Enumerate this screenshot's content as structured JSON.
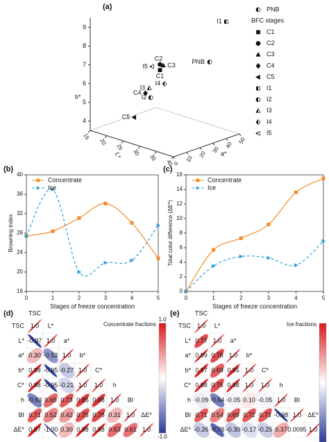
{
  "chart_data": [
    {
      "type": "scatter3d",
      "panel": "(a)",
      "xlabel": "L*",
      "ylabel": "a*",
      "zlabel": "b*",
      "xlim": [
        15,
        40
      ],
      "xticks": [
        15,
        20,
        25,
        30,
        35,
        40
      ],
      "ylim": [
        0,
        50
      ],
      "yticks": [
        0,
        10,
        20,
        30,
        40,
        50
      ],
      "zlim": [
        3.5,
        9.5
      ],
      "zticks": [
        4,
        5,
        6,
        7,
        8,
        9
      ],
      "legend_title": "BFC stages",
      "color": "#111111",
      "points": [
        {
          "name": "PNB",
          "marker": "circle",
          "half": true,
          "x": 35,
          "y": 40,
          "z": 7.3
        },
        {
          "name": "C1",
          "marker": "square",
          "half": false,
          "x": 30,
          "y": 15,
          "z": 7.2
        },
        {
          "name": "C2",
          "marker": "circle",
          "half": false,
          "x": 30,
          "y": 15,
          "z": 7.5
        },
        {
          "name": "C3",
          "marker": "triangle",
          "half": false,
          "x": 31,
          "y": 15,
          "z": 7.5
        },
        {
          "name": "C4",
          "marker": "diamond",
          "half": false,
          "x": 28,
          "y": 9,
          "z": 6
        },
        {
          "name": "C5",
          "marker": "triangle-left",
          "half": false,
          "x": 27,
          "y": 3,
          "z": 4.8
        },
        {
          "name": "I1",
          "marker": "square",
          "half": true,
          "x": 38,
          "y": 45,
          "z": 9.5
        },
        {
          "name": "I2",
          "marker": "circle",
          "half": true,
          "x": 30,
          "y": 8,
          "z": 5.9
        },
        {
          "name": "I3",
          "marker": "triangle",
          "half": true,
          "x": 28,
          "y": 12,
          "z": 6.2
        },
        {
          "name": "I4",
          "marker": "diamond",
          "half": true,
          "x": 31,
          "y": 16,
          "z": 6.5
        },
        {
          "name": "I5",
          "marker": "triangle-left",
          "half": true,
          "x": 28,
          "y": 14,
          "z": 7.3
        }
      ]
    },
    {
      "type": "line",
      "panel": "(b)",
      "xlabel": "Stages of freeze concentration",
      "ylabel": "Browning index",
      "x": [
        0,
        1,
        2,
        3,
        4,
        5
      ],
      "xlim": [
        0,
        5
      ],
      "xticks": [
        0,
        1,
        2,
        3,
        4,
        5
      ],
      "ylim": [
        16,
        40
      ],
      "yticks": [
        16,
        20,
        24,
        28,
        32,
        36,
        40
      ],
      "legend": "upper left",
      "smooth": true,
      "series": [
        {
          "name": "Concentrate",
          "color": "#f28c28",
          "dash": false,
          "marker": "square",
          "values": [
            27.4,
            28.4,
            31.1,
            34.1,
            30.1,
            22.8
          ]
        },
        {
          "name": "Ice",
          "color": "#2e9fd8",
          "dash": true,
          "marker": "triangle-right",
          "values": [
            27.4,
            37,
            20,
            21.9,
            22.4,
            29.6
          ]
        }
      ]
    },
    {
      "type": "line",
      "panel": "(c)",
      "xlabel": "Stages of freeze concentration",
      "ylabel": "Total color difference (ΔE*)",
      "x": [
        0,
        1,
        2,
        3,
        4,
        5
      ],
      "xlim": [
        0,
        5
      ],
      "xticks": [
        0,
        1,
        2,
        3,
        4,
        5
      ],
      "ylim": [
        0,
        16
      ],
      "yticks": [
        0,
        2,
        4,
        6,
        8,
        10,
        12,
        14,
        16
      ],
      "legend": "upper left",
      "smooth": true,
      "series": [
        {
          "name": "Concentrate",
          "color": "#f28c28",
          "dash": false,
          "marker": "square",
          "values": [
            0,
            5.7,
            7.3,
            9.2,
            13.6,
            15.5
          ]
        },
        {
          "name": "Ice",
          "color": "#2e9fd8",
          "dash": true,
          "marker": "triangle-right",
          "values": [
            0,
            3.5,
            4.8,
            4.6,
            3.6,
            6.9
          ]
        }
      ]
    },
    {
      "type": "correlation",
      "panel": "(d)",
      "colorbar_title": "Concentrate fractions",
      "colorbar_ticks": [
        {
          "value": 1,
          "label": "1.0"
        },
        {
          "value": -1,
          "label": "-1.0"
        }
      ],
      "colormap": {
        "low": "#2b3a9a",
        "mid": "#ffffff",
        "high": "#d7191c"
      },
      "variables": [
        "TSC",
        "L*",
        "a*",
        "b*",
        "C*",
        "h",
        "BI",
        "ΔE*"
      ],
      "values": [
        [
          1
        ],
        [
          -0.97,
          1
        ],
        [
          0.3,
          -0.53,
          1
        ],
        [
          0.98,
          -0.95,
          -0.27,
          1
        ],
        [
          0.98,
          -0.95,
          -0.21,
          1,
          1
        ],
        [
          -0.63,
          0.65,
          0.73,
          0.85,
          0.88,
          1
        ],
        [
          0.71,
          0.52,
          0.42,
          0.75,
          0.78,
          0.31,
          1
        ],
        [
          0.97,
          -1,
          0.3,
          0.98,
          0.98,
          0.63,
          0.61,
          1
        ]
      ],
      "value_labels": [
        [
          "1.0"
        ],
        [
          "-0.97",
          "1.0"
        ],
        [
          "0.30",
          "-0.53",
          "1.0"
        ],
        [
          "0.98",
          "-0.95",
          "-0.27",
          "1.0"
        ],
        [
          "0.98",
          "-0.95",
          "-0.21",
          "1.0",
          "1.0"
        ],
        [
          "-0.63",
          "0.65",
          "0.73",
          "0.85",
          "0.88",
          "1.0"
        ],
        [
          "0.71",
          "0.52",
          "0.42",
          "0.75",
          "0.78",
          "0.31",
          "1.0"
        ],
        [
          "0.97",
          "-1.00",
          "0.30",
          "0.98",
          "0.98",
          "0.63",
          "0.61",
          "1.0"
        ]
      ]
    },
    {
      "type": "correlation",
      "panel": "(e)",
      "colorbar_title": "Ice fractions",
      "colormap": {
        "low": "#2b3a9a",
        "mid": "#ffffff",
        "high": "#d7191c"
      },
      "variables": [
        "TSC",
        "L*",
        "a*",
        "b*",
        "C*",
        "h",
        "BI",
        "ΔE*"
      ],
      "values": [
        [
          1
        ],
        [
          0.77,
          1
        ],
        [
          0.99,
          0.78,
          1
        ],
        [
          0.97,
          0.69,
          0.95,
          1
        ],
        [
          0.98,
          0.75,
          0.98,
          1,
          1
        ],
        [
          -0.09,
          -0.64,
          -0.05,
          0.1,
          -0.05,
          1
        ],
        [
          0.71,
          0.54,
          0.69,
          0.72,
          0.73,
          -0.98,
          1
        ],
        [
          -0.26,
          -0.78,
          -0.3,
          -0.17,
          -0.25,
          0.37,
          0.0095,
          1
        ]
      ],
      "value_labels": [
        [
          "1.0"
        ],
        [
          "0.77",
          "1.0"
        ],
        [
          "0.99",
          "0.78",
          "1.0"
        ],
        [
          "0.97",
          "0.69",
          "0.95",
          "1.0"
        ],
        [
          "0.98",
          "0.75",
          "0.98",
          "1.0",
          "1.0"
        ],
        [
          "-0.09",
          "-0.64",
          "-0.05",
          "0.10",
          "-0.05",
          "1.0"
        ],
        [
          "0.71",
          "0.54",
          "0.69",
          "0.72",
          "0.73",
          "-0.98",
          "1.0"
        ],
        [
          "-0.26",
          "-0.78",
          "-0.30",
          "-0.17",
          "-0.25",
          "0.37",
          "0.0095",
          "1.0"
        ]
      ]
    }
  ]
}
